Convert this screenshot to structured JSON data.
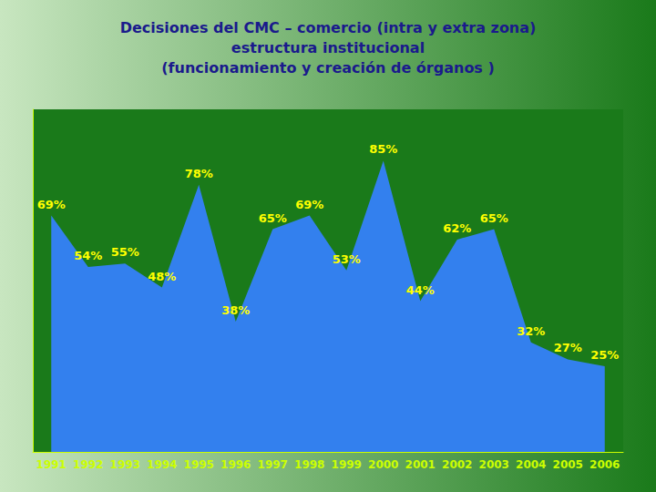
{
  "chart_data": {
    "type": "area",
    "title": "Decisiones del CMC – comercio (intra y extra zona)\nestructura institucional\n(funcionamiento y creación de órganos )",
    "x": [
      1991,
      1992,
      1993,
      1994,
      1995,
      1996,
      1997,
      1998,
      1999,
      2000,
      2001,
      2002,
      2003,
      2004,
      2005,
      2006
    ],
    "values": [
      69,
      54,
      55,
      48,
      78,
      38,
      65,
      69,
      53,
      85,
      44,
      62,
      65,
      32,
      27,
      25
    ],
    "value_labels": [
      "69%",
      "54%",
      "55%",
      "48%",
      "78%",
      "38%",
      "65%",
      "69%",
      "53%",
      "85%",
      "44%",
      "62%",
      "65%",
      "32%",
      "27%",
      "25%"
    ],
    "color": "#3380ee",
    "xlim": [
      1990.5,
      2006.5
    ],
    "xticks": [
      1991,
      1992,
      1993,
      1994,
      1995,
      1996,
      1997,
      1998,
      1999,
      2000,
      2001,
      2002,
      2003,
      2004,
      2005,
      2006
    ],
    "ylim": [
      0,
      100
    ],
    "tick_labels": "x",
    "data_labels": true,
    "grid": false
  }
}
